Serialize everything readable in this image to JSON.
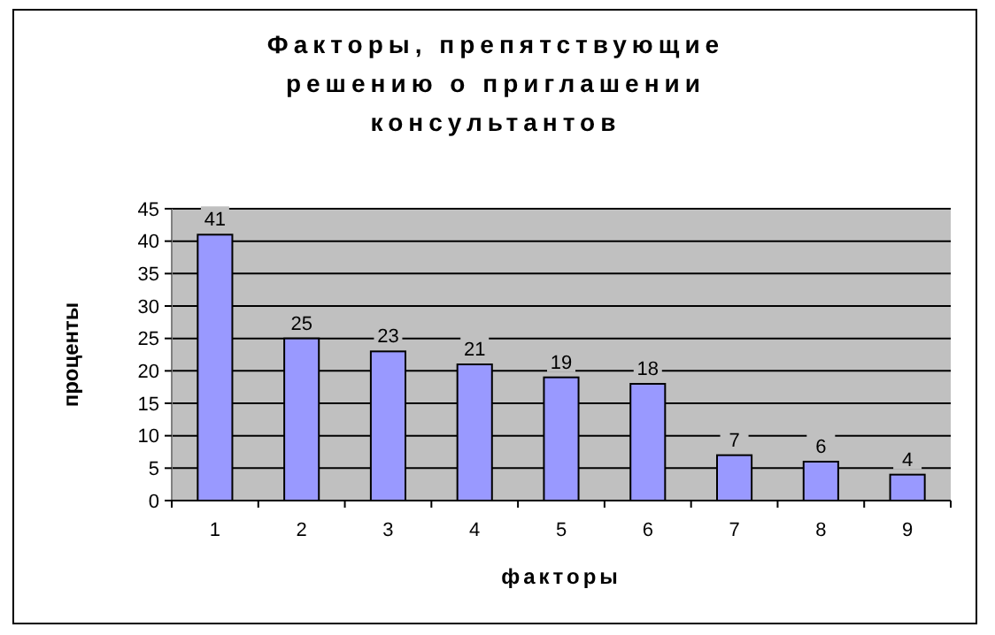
{
  "chart_data": {
    "type": "bar",
    "title": "Факторы, препятствующие решению о приглашении консультантов",
    "xlabel": "факторы",
    "ylabel": "проценты",
    "categories": [
      "1",
      "2",
      "3",
      "4",
      "5",
      "6",
      "7",
      "8",
      "9"
    ],
    "values": [
      41,
      25,
      23,
      21,
      19,
      18,
      7,
      6,
      4
    ],
    "color": "#9999ff",
    "ylim": [
      0,
      45
    ],
    "yticks": [
      0,
      5,
      10,
      15,
      20,
      25,
      30,
      35,
      40,
      45
    ],
    "grid": "y",
    "data_labels": true
  }
}
